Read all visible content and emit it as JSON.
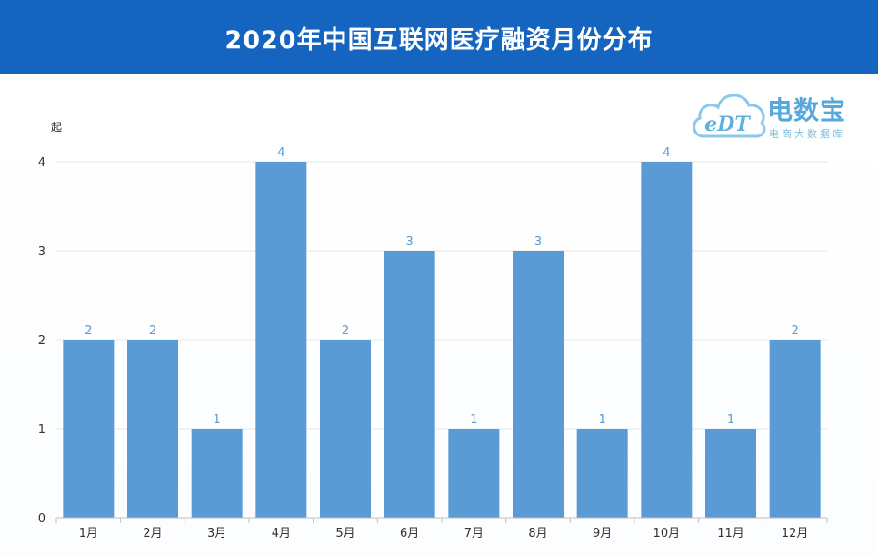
{
  "header": {
    "title": "2020年中国互联网医疗融资月份分布"
  },
  "logo": {
    "mark": "eDT",
    "name": "电数宝",
    "subtitle": "电商大数据库"
  },
  "colors": {
    "header": "#1565c0",
    "bar": "#5b9bd5",
    "label": "#5b9bd5"
  },
  "chart_data": {
    "type": "bar",
    "title": "2020年中国互联网医疗融资月份分布",
    "ylabel": "起",
    "xlabel": "",
    "categories": [
      "1月",
      "2月",
      "3月",
      "4月",
      "5月",
      "6月",
      "7月",
      "8月",
      "9月",
      "10月",
      "11月",
      "12月"
    ],
    "values": [
      2,
      2,
      1,
      4,
      2,
      3,
      1,
      3,
      1,
      4,
      1,
      2
    ],
    "ylim": [
      0,
      4
    ],
    "yticks": [
      0,
      1,
      2,
      3,
      4
    ],
    "grid": true,
    "data_labels": true
  }
}
